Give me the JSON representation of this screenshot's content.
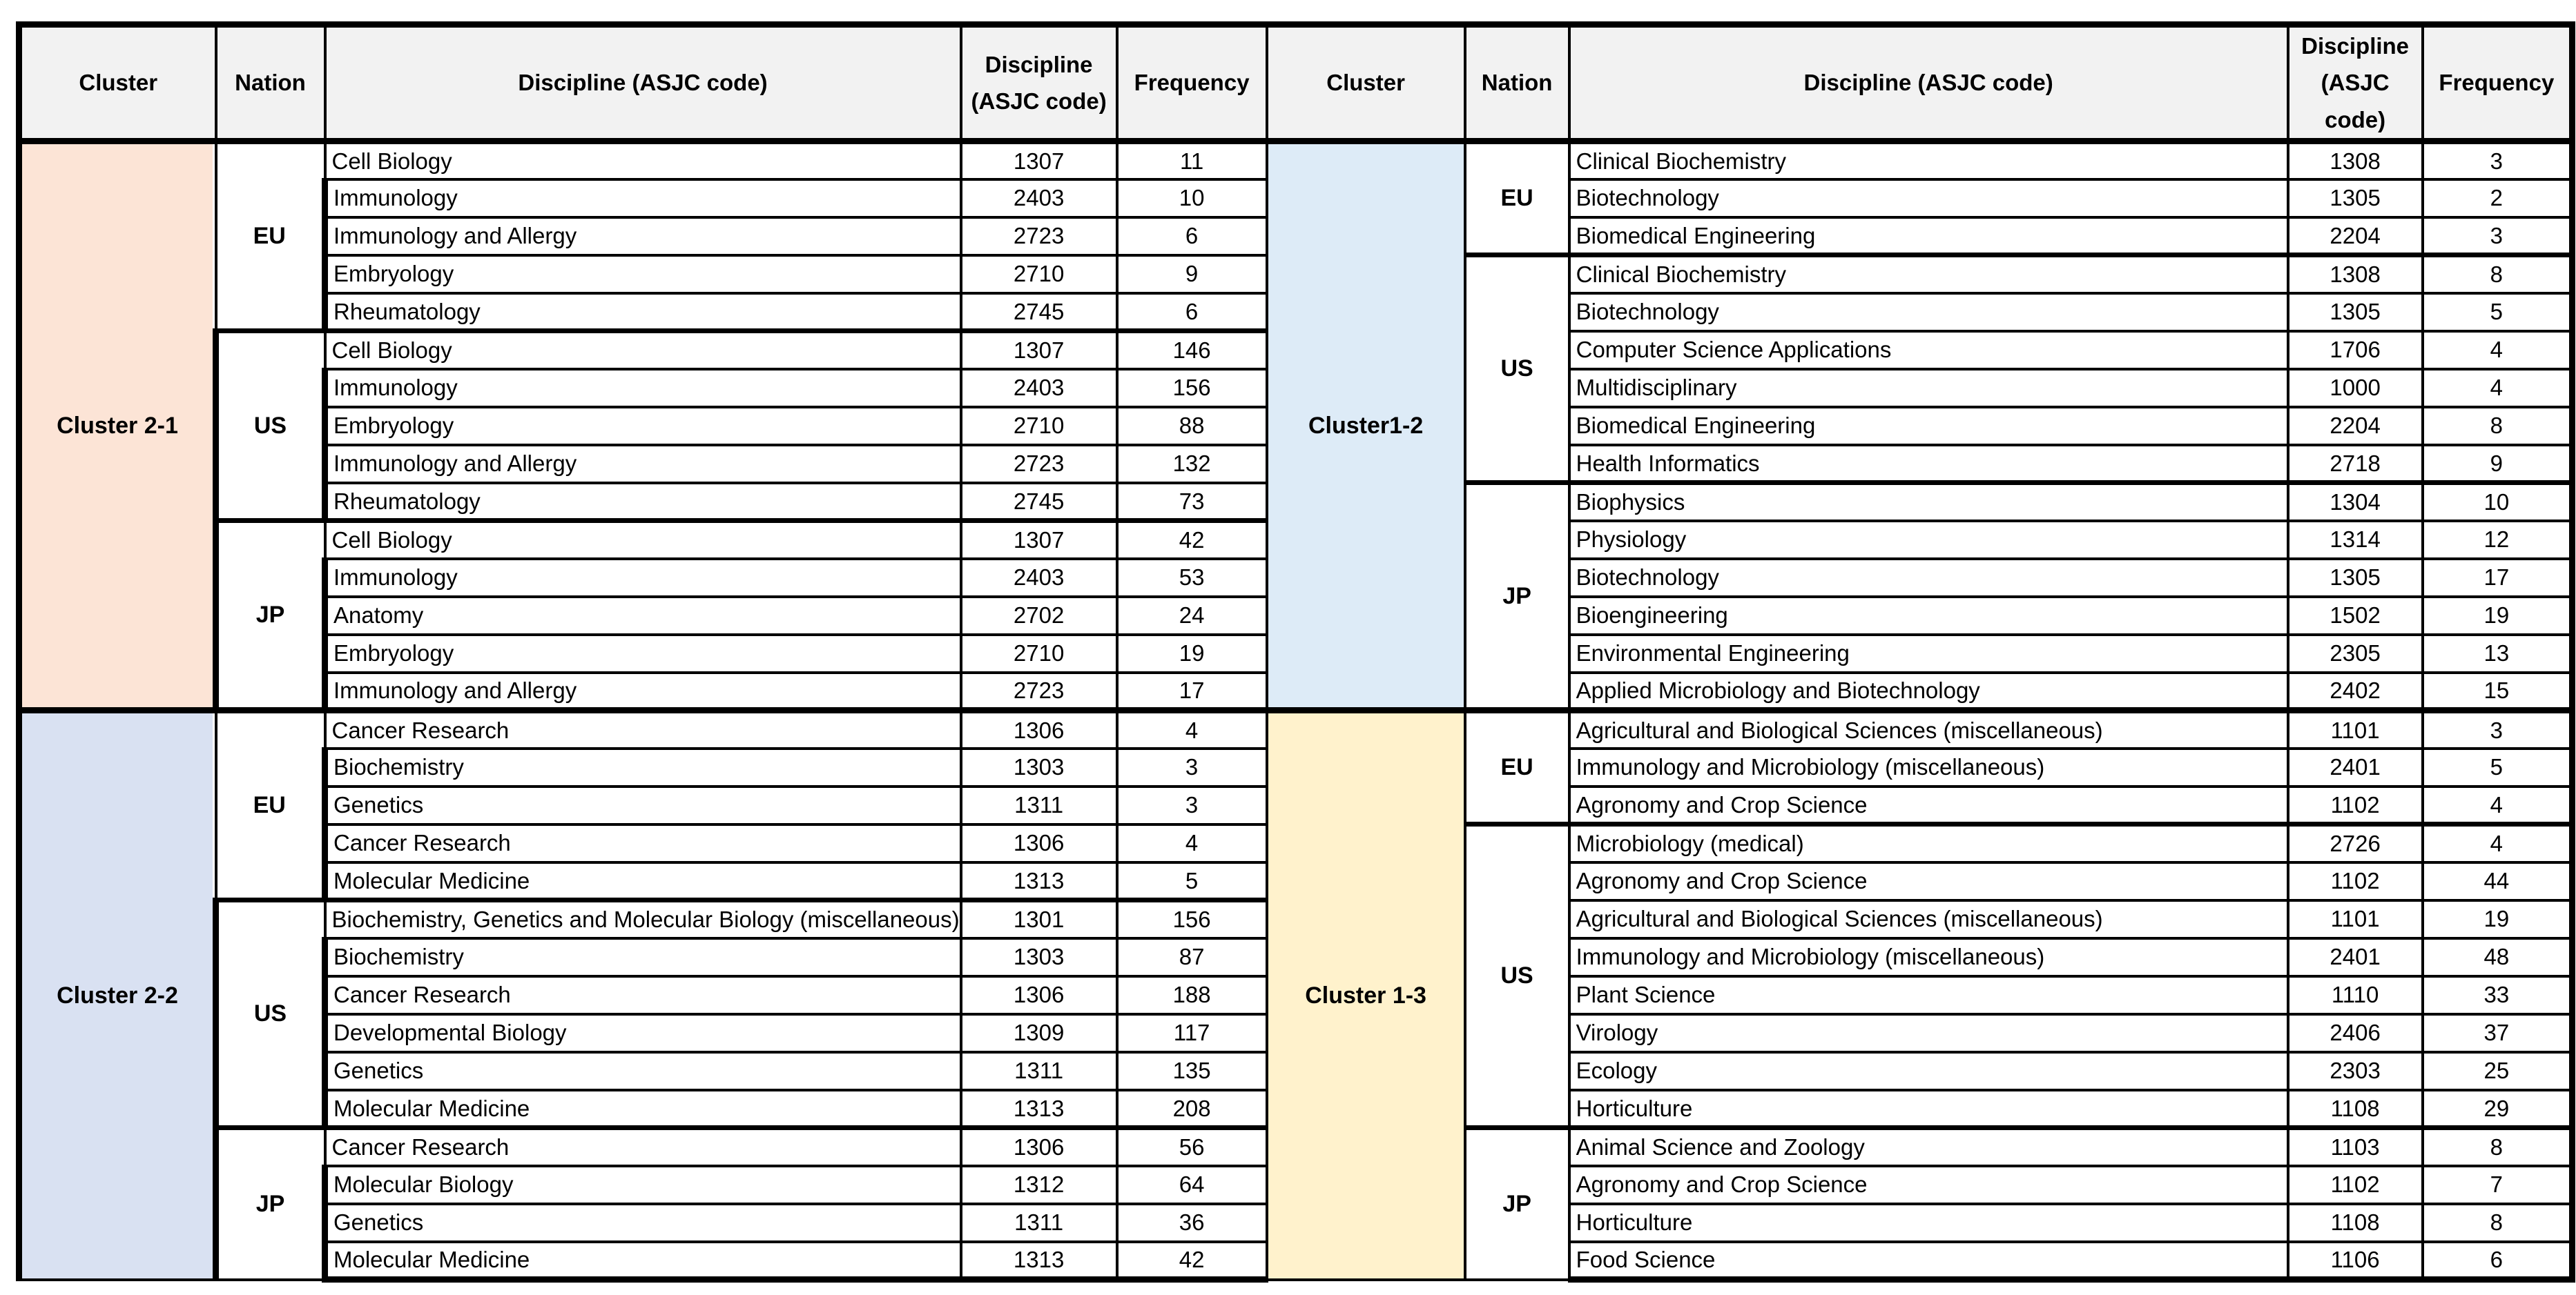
{
  "colors": {
    "border": "#000000",
    "header_bg": "#F2F2F2",
    "cluster_2_1_fill": "#FCE4D6",
    "cluster_2_2_fill": "#D9E1F2",
    "cluster_1_2_fill": "#DDEBF7",
    "cluster_1_3_fill": "#FFF2CC"
  },
  "table": {
    "left": {
      "headers": [
        "Cluster",
        "Nation",
        "Discipline (ASJC code)",
        "Discipline (ASJC code)",
        "Frequency"
      ],
      "clusters": [
        {
          "label": "Cluster 2-1",
          "fill": "#FCE4D6",
          "nations": [
            {
              "label": "EU",
              "rows": [
                {
                  "discipline": "Cell Biology",
                  "code": "1307",
                  "frequency": "11"
                },
                {
                  "discipline": "Immunology",
                  "code": "2403",
                  "frequency": "10"
                },
                {
                  "discipline": "Immunology and Allergy",
                  "code": "2723",
                  "frequency": "6"
                },
                {
                  "discipline": "Embryology",
                  "code": "2710",
                  "frequency": "9"
                },
                {
                  "discipline": "Rheumatology",
                  "code": "2745",
                  "frequency": "6"
                }
              ]
            },
            {
              "label": "US",
              "rows": [
                {
                  "discipline": "Cell Biology",
                  "code": "1307",
                  "frequency": "146"
                },
                {
                  "discipline": "Immunology",
                  "code": "2403",
                  "frequency": "156"
                },
                {
                  "discipline": "Embryology",
                  "code": "2710",
                  "frequency": "88"
                },
                {
                  "discipline": "Immunology and Allergy",
                  "code": "2723",
                  "frequency": "132"
                },
                {
                  "discipline": "Rheumatology",
                  "code": "2745",
                  "frequency": "73"
                }
              ]
            },
            {
              "label": "JP",
              "rows": [
                {
                  "discipline": "Cell Biology",
                  "code": "1307",
                  "frequency": "42"
                },
                {
                  "discipline": "Immunology",
                  "code": "2403",
                  "frequency": "53"
                },
                {
                  "discipline": "Anatomy",
                  "code": "2702",
                  "frequency": "24"
                },
                {
                  "discipline": "Embryology",
                  "code": "2710",
                  "frequency": "19"
                },
                {
                  "discipline": "Immunology and Allergy",
                  "code": "2723",
                  "frequency": "17"
                }
              ]
            }
          ]
        },
        {
          "label": "Cluster 2-2",
          "fill": "#D9E1F2",
          "nations": [
            {
              "label": "EU",
              "rows": [
                {
                  "discipline": "Cancer Research",
                  "code": "1306",
                  "frequency": "4"
                },
                {
                  "discipline": "Biochemistry",
                  "code": "1303",
                  "frequency": "3"
                },
                {
                  "discipline": "Genetics",
                  "code": "1311",
                  "frequency": "3"
                },
                {
                  "discipline": "Cancer Research",
                  "code": "1306",
                  "frequency": "4"
                },
                {
                  "discipline": "Molecular Medicine",
                  "code": "1313",
                  "frequency": "5"
                }
              ]
            },
            {
              "label": "US",
              "rows": [
                {
                  "discipline": "Biochemistry, Genetics and Molecular Biology (miscellaneous)",
                  "code": "1301",
                  "frequency": "156"
                },
                {
                  "discipline": "Biochemistry",
                  "code": "1303",
                  "frequency": "87"
                },
                {
                  "discipline": "Cancer Research",
                  "code": "1306",
                  "frequency": "188"
                },
                {
                  "discipline": "Developmental Biology",
                  "code": "1309",
                  "frequency": "117"
                },
                {
                  "discipline": "Genetics",
                  "code": "1311",
                  "frequency": "135"
                },
                {
                  "discipline": "Molecular Medicine",
                  "code": "1313",
                  "frequency": "208"
                }
              ]
            },
            {
              "label": "JP",
              "rows": [
                {
                  "discipline": "Cancer Research",
                  "code": "1306",
                  "frequency": "56"
                },
                {
                  "discipline": "Molecular Biology",
                  "code": "1312",
                  "frequency": "64"
                },
                {
                  "discipline": "Genetics",
                  "code": "1311",
                  "frequency": "36"
                },
                {
                  "discipline": "Molecular Medicine",
                  "code": "1313",
                  "frequency": "42"
                }
              ]
            }
          ]
        }
      ]
    },
    "right": {
      "headers": [
        "Cluster",
        "Nation",
        "Discipline (ASJC code)",
        "Discipline (ASJC code)",
        "Frequency"
      ],
      "clusters": [
        {
          "label": "Cluster1-2",
          "fill": "#DDEBF7",
          "nations": [
            {
              "label": "EU",
              "rows": [
                {
                  "discipline": "Clinical Biochemistry",
                  "code": "1308",
                  "frequency": "3"
                },
                {
                  "discipline": "Biotechnology",
                  "code": "1305",
                  "frequency": "2"
                },
                {
                  "discipline": "Biomedical Engineering",
                  "code": "2204",
                  "frequency": "3"
                }
              ]
            },
            {
              "label": "US",
              "rows": [
                {
                  "discipline": "Clinical Biochemistry",
                  "code": "1308",
                  "frequency": "8"
                },
                {
                  "discipline": "Biotechnology",
                  "code": "1305",
                  "frequency": "5"
                },
                {
                  "discipline": "Computer Science Applications",
                  "code": "1706",
                  "frequency": "4"
                },
                {
                  "discipline": "Multidisciplinary",
                  "code": "1000",
                  "frequency": "4"
                },
                {
                  "discipline": "Biomedical Engineering",
                  "code": "2204",
                  "frequency": "8"
                },
                {
                  "discipline": "Health Informatics",
                  "code": "2718",
                  "frequency": "9"
                }
              ]
            },
            {
              "label": "JP",
              "rows": [
                {
                  "discipline": "Biophysics",
                  "code": "1304",
                  "frequency": "10"
                },
                {
                  "discipline": "Physiology",
                  "code": "1314",
                  "frequency": "12"
                },
                {
                  "discipline": "Biotechnology",
                  "code": "1305",
                  "frequency": "17"
                },
                {
                  "discipline": "Bioengineering",
                  "code": "1502",
                  "frequency": "19"
                },
                {
                  "discipline": "Environmental Engineering",
                  "code": "2305",
                  "frequency": "13"
                },
                {
                  "discipline": "Applied Microbiology and Biotechnology",
                  "code": "2402",
                  "frequency": "15"
                }
              ]
            }
          ]
        },
        {
          "label": "Cluster 1-3",
          "fill": "#FFF2CC",
          "nations": [
            {
              "label": "EU",
              "rows": [
                {
                  "discipline": "Agricultural and Biological Sciences (miscellaneous)",
                  "code": "1101",
                  "frequency": "3"
                },
                {
                  "discipline": "Immunology and Microbiology (miscellaneous)",
                  "code": "2401",
                  "frequency": "5"
                },
                {
                  "discipline": "Agronomy and Crop Science",
                  "code": "1102",
                  "frequency": "4"
                }
              ]
            },
            {
              "label": "US",
              "rows": [
                {
                  "discipline": "Microbiology (medical)",
                  "code": "2726",
                  "frequency": "4"
                },
                {
                  "discipline": "Agronomy and Crop Science",
                  "code": "1102",
                  "frequency": "44"
                },
                {
                  "discipline": "Agricultural and Biological Sciences (miscellaneous)",
                  "code": "1101",
                  "frequency": "19"
                },
                {
                  "discipline": "Immunology and Microbiology (miscellaneous)",
                  "code": "2401",
                  "frequency": "48"
                },
                {
                  "discipline": "Plant Science",
                  "code": "1110",
                  "frequency": "33"
                },
                {
                  "discipline": "Virology",
                  "code": "2406",
                  "frequency": "37"
                },
                {
                  "discipline": "Ecology",
                  "code": "2303",
                  "frequency": "25"
                },
                {
                  "discipline": "Horticulture",
                  "code": "1108",
                  "frequency": "29"
                }
              ]
            },
            {
              "label": "JP",
              "rows": [
                {
                  "discipline": "Animal Science and Zoology",
                  "code": "1103",
                  "frequency": "8"
                },
                {
                  "discipline": "Agronomy and Crop Science",
                  "code": "1102",
                  "frequency": "7"
                },
                {
                  "discipline": "Horticulture",
                  "code": "1108",
                  "frequency": "8"
                },
                {
                  "discipline": "Food Science",
                  "code": "1106",
                  "frequency": "6"
                }
              ]
            }
          ]
        }
      ]
    }
  }
}
